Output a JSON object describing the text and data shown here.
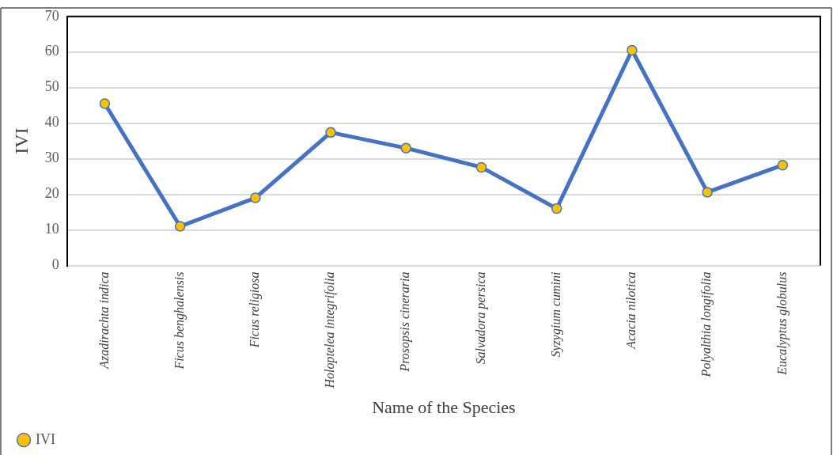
{
  "chart_data": {
    "type": "line",
    "xlabel": "Name of the Species",
    "ylabel": "IVI",
    "categories": [
      "Azadirachta indica",
      "Ficus benghalensis",
      "Ficus religiosa",
      "Holoptelea integrifolia",
      "Prosopsis cineraria",
      "Salvadora persica",
      "Syzygium cumini",
      "Acacia nilotica",
      "Polyalthia longifolia",
      "Eucalyptus globulus"
    ],
    "series": [
      {
        "name": "IVI",
        "color": "#4472c4",
        "colors": [
          "#ffc000",
          "#ffc000",
          "#ffc000",
          "#ffc000",
          "#ffc000",
          "#ffc000",
          "#ffc000",
          "#ffc000",
          "#ffc000",
          "#ffc000"
        ],
        "values": [
          45.5,
          11,
          19,
          37.4,
          33,
          27.6,
          16,
          60.5,
          20.6,
          28.2
        ]
      }
    ],
    "ylim": [
      0,
      70
    ],
    "yticks": [
      0,
      10,
      20,
      30,
      40,
      50,
      60,
      70
    ],
    "grid": "y",
    "legend": "bottom left",
    "marker": "circle",
    "line_style": "solid"
  }
}
